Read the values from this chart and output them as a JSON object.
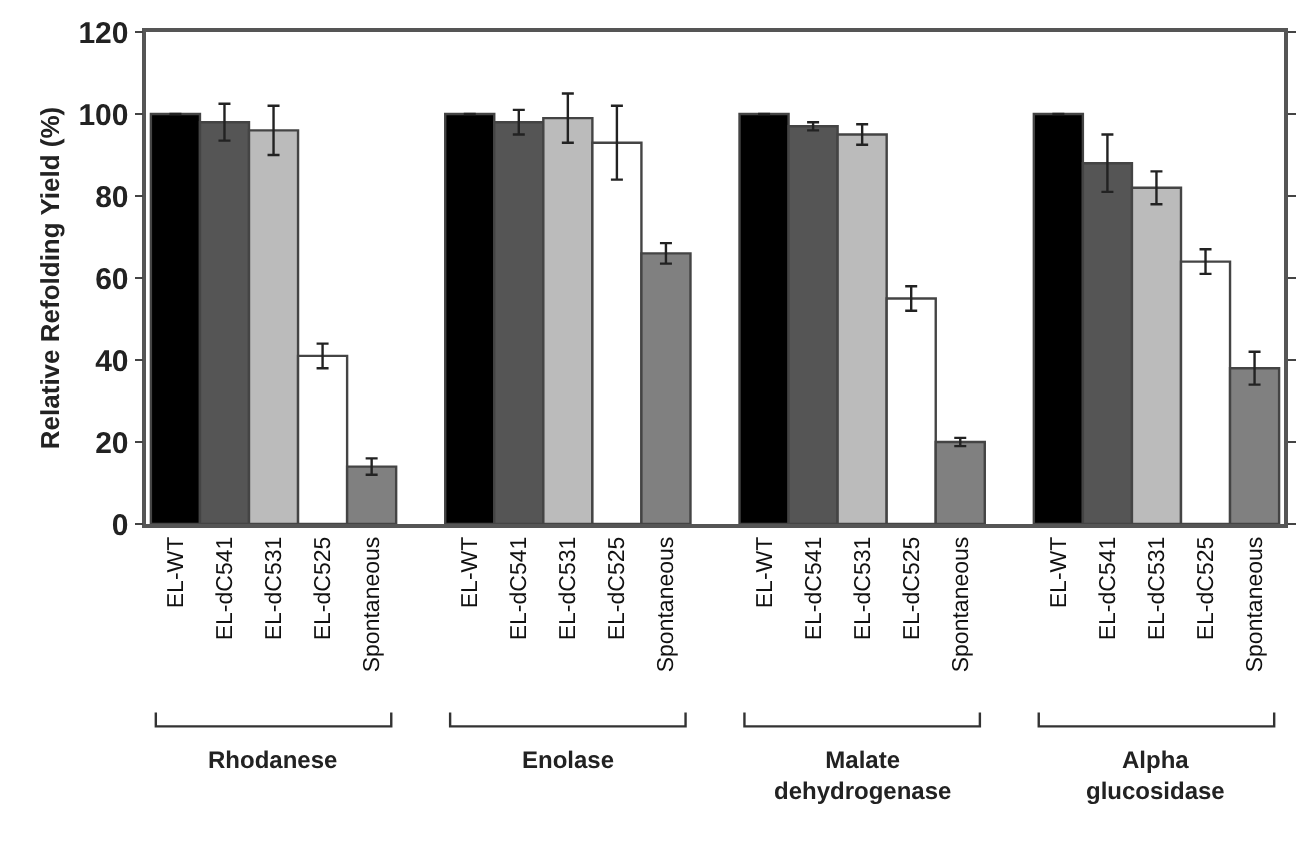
{
  "chart_data": {
    "type": "bar",
    "categories": [
      "EL-WT",
      "EL-dC541",
      "EL-dC531",
      "EL-dC525",
      "Spontaneous",
      null,
      "EL-WT",
      "EL-dC541",
      "EL-dC531",
      "EL-dC525",
      "Spontaneous",
      null,
      "EL-WT",
      "EL-dC541",
      "EL-dC531",
      "EL-dC525",
      "Spontaneous",
      null,
      "EL-WT",
      "EL-dC541",
      "EL-dC531",
      "EL-dC525",
      "Spontaneous"
    ],
    "values": [
      100,
      98,
      96,
      41,
      14,
      null,
      100,
      98,
      99,
      93,
      66,
      null,
      100,
      97,
      95,
      55,
      20,
      null,
      100,
      88,
      82,
      64,
      38
    ],
    "errors": [
      null,
      4.5,
      6,
      3,
      2,
      null,
      null,
      3,
      6,
      9,
      2.5,
      null,
      null,
      1,
      2.5,
      3,
      1,
      null,
      null,
      7,
      4,
      3,
      4
    ],
    "colors": [
      "#000000",
      "#555555",
      "#bbbbbb",
      "#ffffff",
      "#808080",
      null,
      "#000000",
      "#555555",
      "#bbbbbb",
      "#ffffff",
      "#808080",
      null,
      "#000000",
      "#555555",
      "#bbbbbb",
      "#ffffff",
      "#808080",
      null,
      "#000000",
      "#555555",
      "#bbbbbb",
      "#ffffff",
      "#808080"
    ],
    "annotations": [
      "Rhodanese",
      "Enolase",
      "Malate\ndehydrogenase",
      "Alpha\nglucosidase"
    ],
    "ylabel": "Relative Refolding Yield (%)",
    "ylim": [
      0,
      120
    ],
    "yticks": [
      0,
      20,
      40,
      60,
      80,
      100,
      120
    ]
  }
}
